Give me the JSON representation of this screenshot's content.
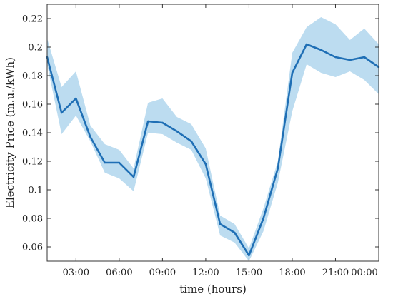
{
  "chart_data": {
    "type": "area",
    "title": "",
    "xlabel": "time (hours)",
    "ylabel": "Electricity Price (m.u./kWh)",
    "x": [
      "01:00",
      "02:00",
      "03:00",
      "04:00",
      "05:00",
      "06:00",
      "07:00",
      "08:00",
      "09:00",
      "10:00",
      "11:00",
      "12:00",
      "13:00",
      "14:00",
      "15:00",
      "16:00",
      "17:00",
      "18:00",
      "19:00",
      "20:00",
      "21:00",
      "22:00",
      "23:00",
      "00:00"
    ],
    "xlim_labels": [
      "03:00",
      "06:00",
      "09:00",
      "12:00",
      "15:00",
      "18:00",
      "21:00",
      "00:00"
    ],
    "ylim": [
      0.05,
      0.23
    ],
    "yticks": [
      "0.06",
      "0.08",
      "0.1",
      "0.12",
      "0.14",
      "0.16",
      "0.18",
      "0.2",
      "0.22"
    ],
    "grid": false,
    "series": [
      {
        "values": [
          0.193,
          0.154,
          0.164,
          0.137,
          0.119,
          0.119,
          0.109,
          0.148,
          0.147,
          0.141,
          0.134,
          0.118,
          0.076,
          0.07,
          0.054,
          0.08,
          0.115,
          0.182,
          0.202,
          0.198,
          0.193,
          0.191,
          0.193,
          0.186
        ],
        "lower": [
          0.188,
          0.139,
          0.152,
          0.134,
          0.112,
          0.108,
          0.099,
          0.14,
          0.139,
          0.133,
          0.128,
          0.108,
          0.068,
          0.063,
          0.05,
          0.071,
          0.105,
          0.155,
          0.188,
          0.182,
          0.179,
          0.183,
          0.177,
          0.167
        ],
        "upper": [
          0.206,
          0.172,
          0.183,
          0.145,
          0.132,
          0.128,
          0.115,
          0.161,
          0.164,
          0.151,
          0.146,
          0.129,
          0.082,
          0.076,
          0.059,
          0.087,
          0.12,
          0.196,
          0.214,
          0.221,
          0.216,
          0.205,
          0.213,
          0.202
        ],
        "color": "#1f6fb5",
        "band_color": "#bcdcf0"
      }
    ]
  }
}
